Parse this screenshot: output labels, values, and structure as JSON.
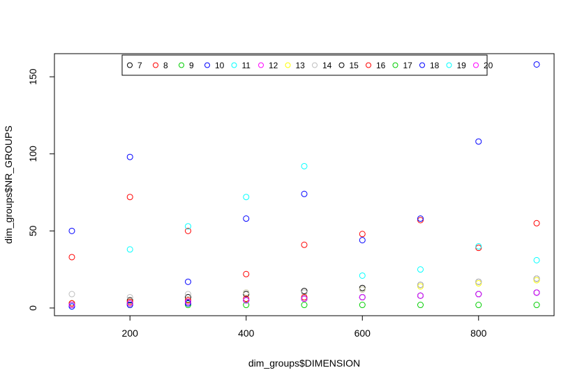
{
  "chart_data": {
    "type": "scatter",
    "xlabel": "dim_groups$DIMENSION",
    "ylabel": "dim_groups$NR_GROUPS",
    "xlim": [
      70,
      930
    ],
    "ylim": [
      -5,
      165
    ],
    "x_ticks": [
      200,
      400,
      600,
      800
    ],
    "y_ticks": [
      0,
      50,
      100,
      150
    ],
    "grid": false,
    "legend_position": "top-center",
    "x": [
      100,
      200,
      300,
      400,
      500,
      600,
      700,
      800,
      900
    ],
    "series": [
      {
        "name": "7",
        "color": "#000000",
        "values": [
          3,
          5,
          7,
          9,
          11,
          13,
          15,
          17,
          19
        ]
      },
      {
        "name": "8",
        "color": "#FF0000",
        "values": [
          33,
          72,
          50,
          22,
          41,
          48,
          57,
          39,
          55
        ]
      },
      {
        "name": "9",
        "color": "#00CD00",
        "values": [
          2,
          2,
          2,
          2,
          2,
          2,
          2,
          2,
          2
        ]
      },
      {
        "name": "10",
        "color": "#0000FF",
        "values": [
          50,
          98,
          17,
          58,
          74,
          44,
          58,
          108,
          158
        ]
      },
      {
        "name": "11",
        "color": "#00FFFF",
        "values": [
          1,
          38,
          53,
          72,
          92,
          21,
          25,
          40,
          31
        ]
      },
      {
        "name": "12",
        "color": "#FF00FF",
        "values": [
          2,
          3,
          4,
          5,
          6,
          7,
          8,
          9,
          10
        ]
      },
      {
        "name": "13",
        "color": "#FFFF00",
        "values": [
          3,
          4,
          5,
          10,
          6,
          12,
          14,
          16,
          18
        ]
      },
      {
        "name": "14",
        "color": "#BEBEBE",
        "values": [
          9,
          7,
          9,
          10,
          10,
          12,
          15,
          17,
          19
        ]
      },
      {
        "name": "15",
        "color": "#000000",
        "values": [
          2,
          3,
          4,
          5,
          6,
          7,
          8,
          9,
          10
        ]
      },
      {
        "name": "16",
        "color": "#FF0000",
        "values": [
          3,
          4,
          5,
          6,
          7,
          7,
          8,
          9,
          10
        ]
      },
      {
        "name": "17",
        "color": "#00CD00",
        "values": [
          2,
          3,
          3,
          5,
          6,
          7,
          8,
          9,
          10
        ]
      },
      {
        "name": "18",
        "color": "#0000FF",
        "values": [
          1,
          2,
          3,
          5,
          6,
          7,
          8,
          9,
          10
        ]
      },
      {
        "name": "19",
        "color": "#00FFFF",
        "values": [
          2,
          3,
          4,
          5,
          6,
          7,
          8,
          9,
          10
        ]
      },
      {
        "name": "20",
        "color": "#FF00FF",
        "values": [
          2,
          3,
          4,
          5,
          6,
          7,
          8,
          9,
          10
        ]
      }
    ]
  }
}
